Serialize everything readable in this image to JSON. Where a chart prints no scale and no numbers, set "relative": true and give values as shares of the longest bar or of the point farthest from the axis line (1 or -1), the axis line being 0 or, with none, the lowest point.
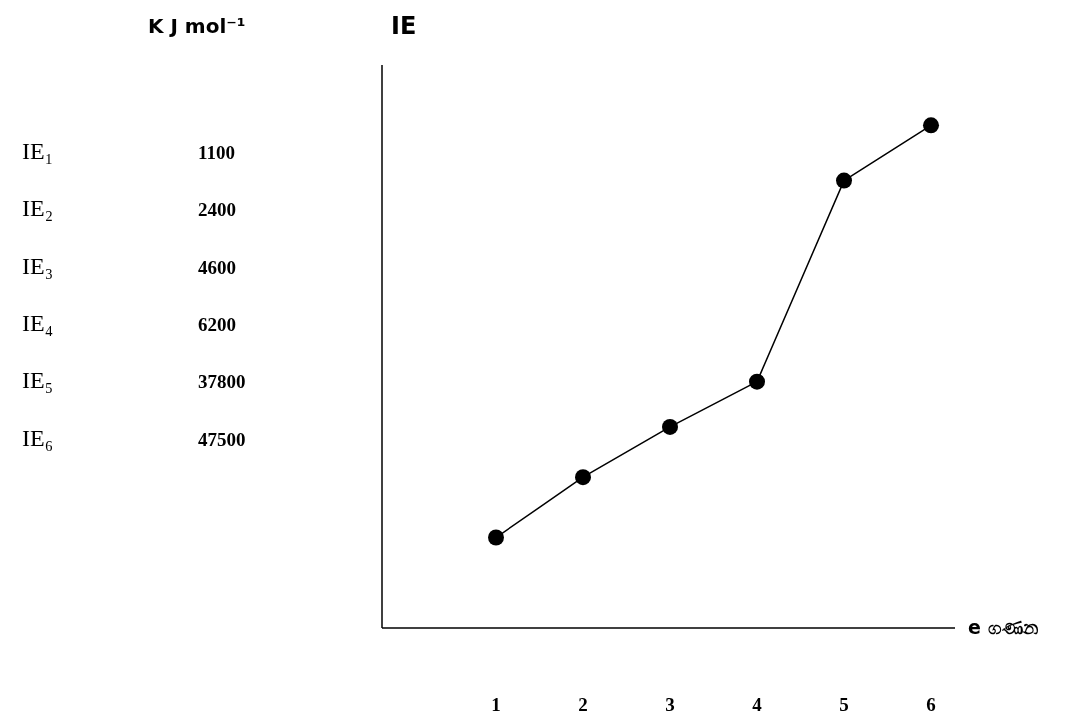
{
  "chart_data": {
    "type": "line",
    "relative": true,
    "categories": [
      "1",
      "2",
      "3",
      "4",
      "5",
      "6"
    ],
    "values": [
      0.18,
      0.3,
      0.4,
      0.49,
      0.89,
      1
    ],
    "color": "#000000",
    "marker": "circle",
    "line_style": "solid",
    "xlabel": "e ගණන",
    "ylabel": "IE",
    "annotations": [
      "K J mol⁻¹",
      "IE₁",
      "1100",
      "IE₂",
      "2400",
      "IE₃",
      "4600",
      "IE₄",
      "6200",
      "IE₅",
      "37800",
      "IE₆",
      "47500"
    ]
  }
}
